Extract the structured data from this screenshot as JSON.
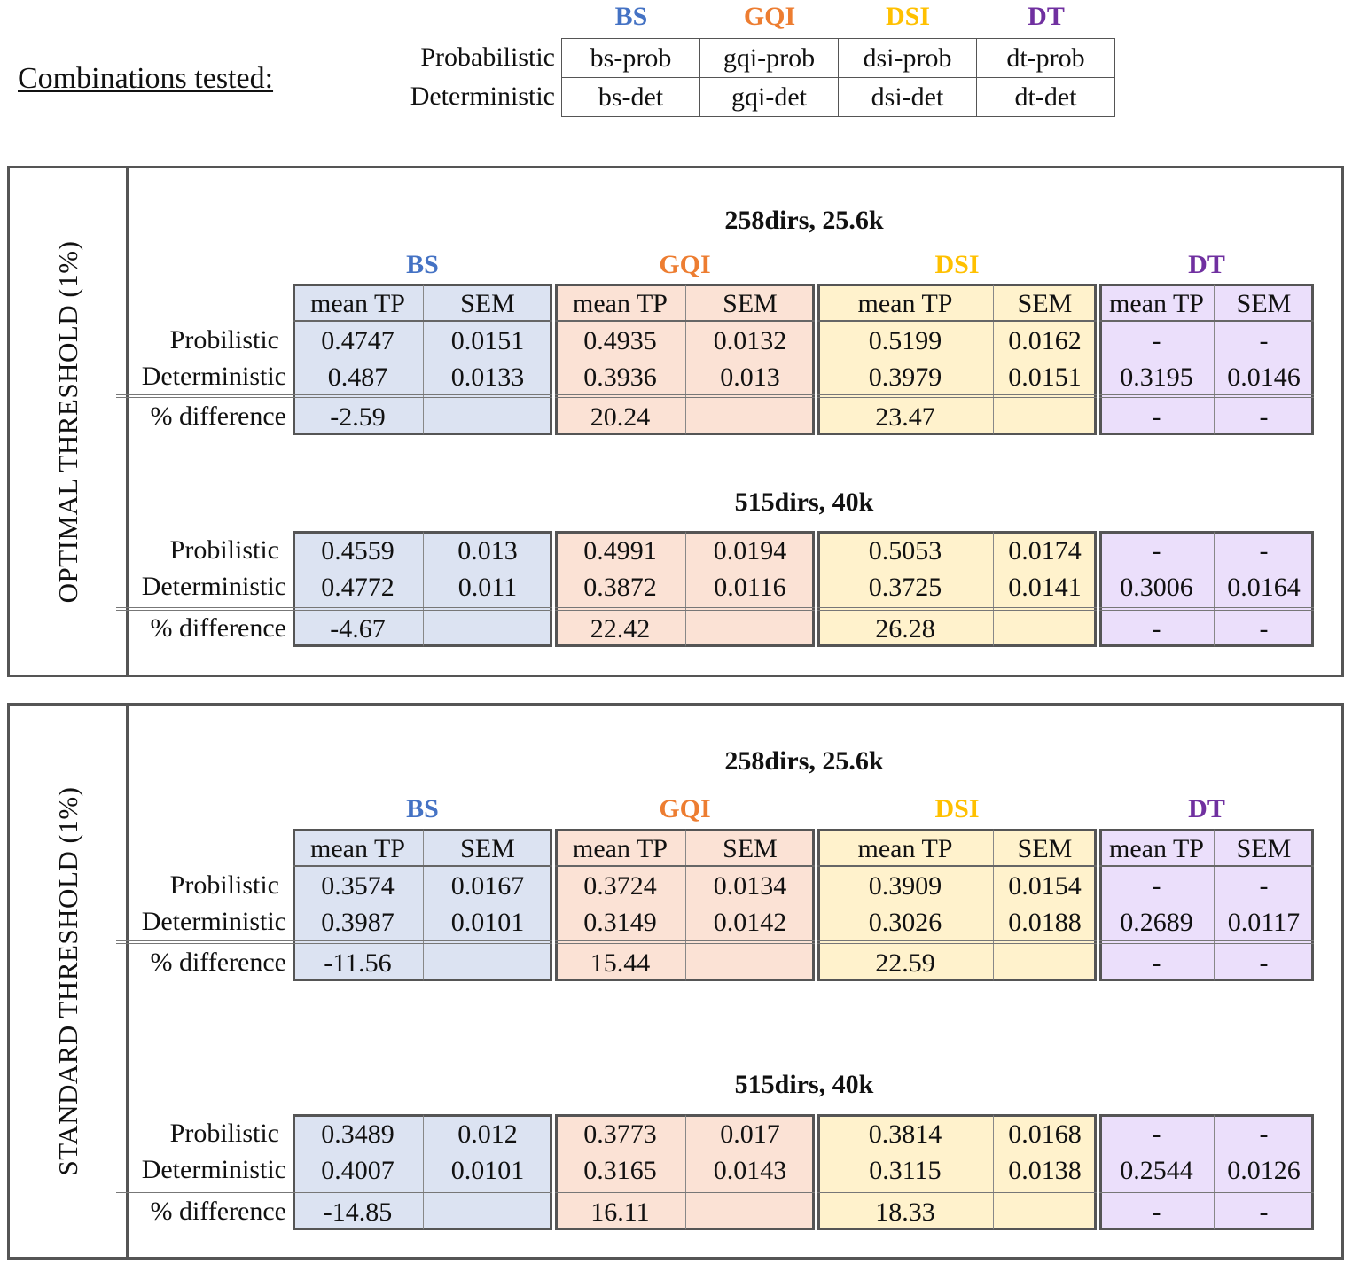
{
  "combinations": {
    "title": "Combinations tested:",
    "methods": [
      {
        "label": "BS",
        "color": "#4472c4"
      },
      {
        "label": "GQI",
        "color": "#ed7d31"
      },
      {
        "label": "DSI",
        "color": "#ffc000"
      },
      {
        "label": "DT",
        "color": "#7030a0"
      }
    ],
    "row_labels": [
      "Probabilistic",
      "Deterministic"
    ],
    "cells": [
      [
        "bs-prob",
        "gqi-prob",
        "dsi-prob",
        "dt-prob"
      ],
      [
        "bs-det",
        "gqi-det",
        "dsi-det",
        "dt-det"
      ]
    ]
  },
  "column_headers": [
    "mean TP",
    "SEM"
  ],
  "row_labels": [
    "Probilistic",
    "Deterministic",
    "% difference"
  ],
  "panels": [
    {
      "label": "OPTIMAL THRESHOLD (1%)",
      "tables": [
        {
          "title": "258dirs, 25.6k",
          "prob": [
            "0.4747",
            "0.0151",
            "0.4935",
            "0.0132",
            "0.5199",
            "0.0162",
            "-",
            "-"
          ],
          "det": [
            "0.487",
            "0.0133",
            "0.3936",
            "0.013",
            "0.3979",
            "0.0151",
            "0.3195",
            "0.0146"
          ],
          "diff": [
            "-2.59",
            "",
            "20.24",
            "",
            "23.47",
            "",
            "-",
            "-"
          ]
        },
        {
          "title": "515dirs, 40k",
          "prob": [
            "0.4559",
            "0.013",
            "0.4991",
            "0.0194",
            "0.5053",
            "0.0174",
            "-",
            "-"
          ],
          "det": [
            "0.4772",
            "0.011",
            "0.3872",
            "0.0116",
            "0.3725",
            "0.0141",
            "0.3006",
            "0.0164"
          ],
          "diff": [
            "-4.67",
            "",
            "22.42",
            "",
            "26.28",
            "",
            "-",
            "-"
          ]
        }
      ]
    },
    {
      "label": "STANDARD THRESHOLD (1%)",
      "tables": [
        {
          "title": "258dirs, 25.6k",
          "prob": [
            "0.3574",
            "0.0167",
            "0.3724",
            "0.0134",
            "0.3909",
            "0.0154",
            "-",
            "-"
          ],
          "det": [
            "0.3987",
            "0.0101",
            "0.3149",
            "0.0142",
            "0.3026",
            "0.0188",
            "0.2689",
            "0.0117"
          ],
          "diff": [
            "-11.56",
            "",
            "15.44",
            "",
            "22.59",
            "",
            "-",
            "-"
          ]
        },
        {
          "title": "515dirs, 40k",
          "prob": [
            "0.3489",
            "0.012",
            "0.3773",
            "0.017",
            "0.3814",
            "0.0168",
            "-",
            "-"
          ],
          "det": [
            "0.4007",
            "0.0101",
            "0.3165",
            "0.0143",
            "0.3115",
            "0.0138",
            "0.2544",
            "0.0126"
          ],
          "diff": [
            "-14.85",
            "",
            "16.11",
            "",
            "18.33",
            "",
            "-",
            "-"
          ]
        }
      ]
    }
  ]
}
